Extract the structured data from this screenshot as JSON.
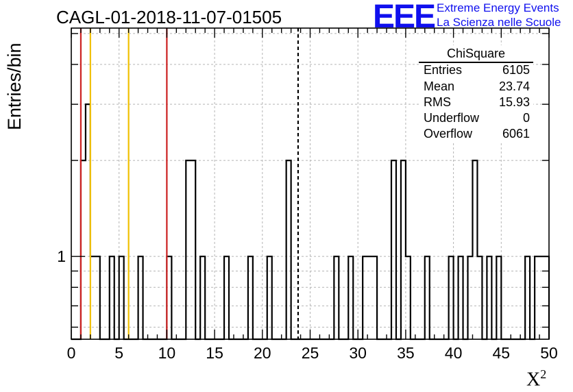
{
  "title": "CAGL-01-2018-11-07-01505",
  "logo": {
    "mark": "EEE",
    "line1": "Extreme Energy Events",
    "line2": "La Scienza nelle Scuole",
    "color": "#1010ee"
  },
  "stats_box": {
    "title": "ChiSquare",
    "rows": [
      {
        "key": "Entries",
        "value": "6105"
      },
      {
        "key": "Mean",
        "value": "23.74"
      },
      {
        "key": "RMS",
        "value": "15.93"
      },
      {
        "key": "Underflow",
        "value": "0"
      },
      {
        "key": "Overflow",
        "value": "6061"
      }
    ]
  },
  "chart_data": {
    "type": "histogram",
    "title": "CAGL-01-2018-11-07-01505",
    "xlabel": "X",
    "xlabel_superscript": "2",
    "ylabel": "Entries/bin",
    "xlim": [
      0,
      50
    ],
    "y_scale": "log",
    "ylim": [
      0.55,
      5.2
    ],
    "bin_width": 0.5,
    "x_ticks": [
      "0",
      "5",
      "10",
      "15",
      "20",
      "25",
      "30",
      "35",
      "40",
      "45",
      "50"
    ],
    "y_tick_labels": [
      "1"
    ],
    "grid": true,
    "nonzero_bins": [
      {
        "x": 1.0,
        "count": 2
      },
      {
        "x": 1.5,
        "count": 3
      },
      {
        "x": 2.0,
        "count": 1
      },
      {
        "x": 2.5,
        "count": 1
      },
      {
        "x": 4.0,
        "count": 1
      },
      {
        "x": 5.0,
        "count": 1
      },
      {
        "x": 7.0,
        "count": 1
      },
      {
        "x": 10.0,
        "count": 1
      },
      {
        "x": 12.0,
        "count": 2
      },
      {
        "x": 12.5,
        "count": 2
      },
      {
        "x": 13.5,
        "count": 1
      },
      {
        "x": 16.0,
        "count": 1
      },
      {
        "x": 18.5,
        "count": 1
      },
      {
        "x": 20.5,
        "count": 1
      },
      {
        "x": 22.5,
        "count": 2
      },
      {
        "x": 27.5,
        "count": 1
      },
      {
        "x": 29.0,
        "count": 1
      },
      {
        "x": 30.5,
        "count": 1
      },
      {
        "x": 31.0,
        "count": 1
      },
      {
        "x": 31.5,
        "count": 1
      },
      {
        "x": 33.5,
        "count": 2
      },
      {
        "x": 34.5,
        "count": 2
      },
      {
        "x": 35.0,
        "count": 1
      },
      {
        "x": 37.0,
        "count": 1
      },
      {
        "x": 39.5,
        "count": 1
      },
      {
        "x": 40.5,
        "count": 1
      },
      {
        "x": 41.5,
        "count": 1
      },
      {
        "x": 42.0,
        "count": 2
      },
      {
        "x": 42.5,
        "count": 1
      },
      {
        "x": 43.5,
        "count": 1
      },
      {
        "x": 44.5,
        "count": 1
      },
      {
        "x": 47.5,
        "count": 1
      },
      {
        "x": 48.5,
        "count": 1
      },
      {
        "x": 49.0,
        "count": 1
      },
      {
        "x": 49.5,
        "count": 1
      }
    ],
    "vertical_lines": [
      {
        "x": 1.0,
        "color": "#cc2020",
        "style": "solid"
      },
      {
        "x": 2.0,
        "color": "#f0c000",
        "style": "solid"
      },
      {
        "x": 6.0,
        "color": "#f0c000",
        "style": "solid"
      },
      {
        "x": 10.0,
        "color": "#cc2020",
        "style": "solid"
      },
      {
        "x": 23.74,
        "color": "#000000",
        "style": "dashed"
      }
    ]
  }
}
